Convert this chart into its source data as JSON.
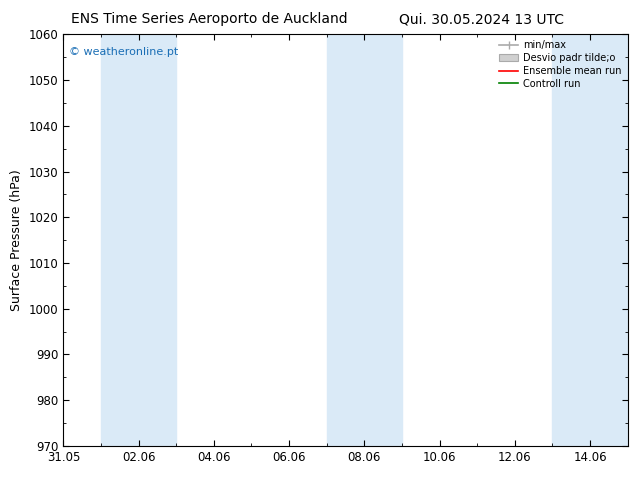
{
  "title_left": "ENS Time Series Aeroporto de Auckland",
  "title_right": "Qui. 30.05.2024 13 UTC",
  "ylabel": "Surface Pressure (hPa)",
  "ylim": [
    970,
    1060
  ],
  "yticks": [
    970,
    980,
    990,
    1000,
    1010,
    1020,
    1030,
    1040,
    1050,
    1060
  ],
  "xtick_labels": [
    "31.05",
    "02.06",
    "04.06",
    "06.06",
    "08.06",
    "10.06",
    "12.06",
    "14.06"
  ],
  "xtick_positions": [
    0,
    2,
    4,
    6,
    8,
    10,
    12,
    14
  ],
  "xlim": [
    0,
    15
  ],
  "shaded_bands": [
    {
      "x_start": 1,
      "x_end": 3
    },
    {
      "x_start": 7,
      "x_end": 9
    },
    {
      "x_start": 13,
      "x_end": 15
    }
  ],
  "shaded_color": "#daeaf7",
  "watermark_text": "© weatheronline.pt",
  "watermark_color": "#1a6eb5",
  "background_color": "#ffffff",
  "plot_bg_color": "#ffffff",
  "title_fontsize": 10,
  "tick_fontsize": 8.5,
  "ylabel_fontsize": 9
}
